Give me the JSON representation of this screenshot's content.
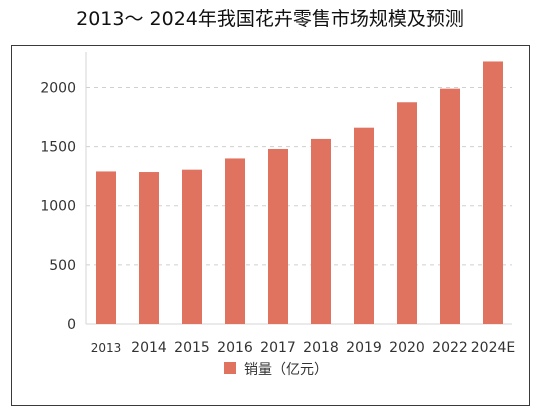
{
  "title": "2013～ 2024年我国花卉零售市场规模及预测",
  "chart_data": {
    "type": "bar",
    "title": "2013～ 2024年我国花卉零售市场规模及预测",
    "categories": [
      "2013",
      "2014",
      "2015",
      "2016",
      "2017",
      "2018",
      "2019",
      "2020",
      "2022",
      "2024E"
    ],
    "series": [
      {
        "name": "销量（亿元）",
        "color": "#e07260",
        "values": [
          1290,
          1285,
          1305,
          1400,
          1480,
          1565,
          1660,
          1875,
          1990,
          2220
        ]
      }
    ],
    "xlabel": "",
    "ylabel": "",
    "ylim": [
      0,
      2300
    ],
    "yticks": [
      0,
      500,
      1000,
      1500,
      2000
    ],
    "grid": "y-dashed",
    "legend_position": "bottom-center"
  }
}
